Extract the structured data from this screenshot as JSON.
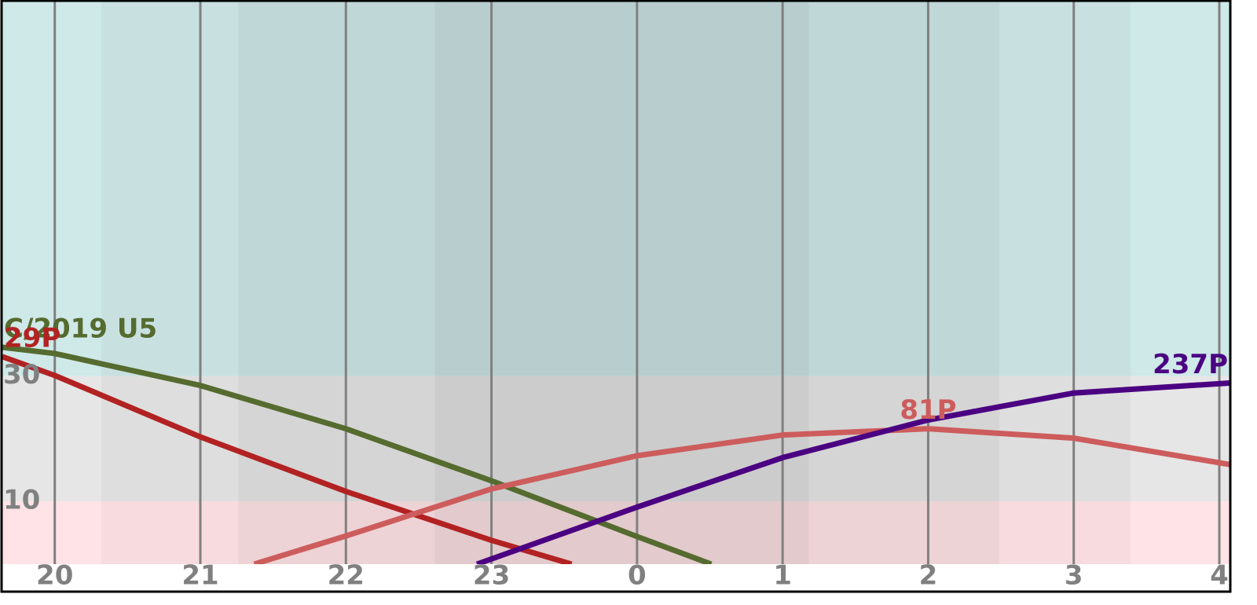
{
  "chart_data": {
    "type": "line",
    "xlim": [
      19.64,
      28.07
    ],
    "xticks": [
      20,
      21,
      22,
      23,
      {
        "value": 24,
        "label": "0"
      },
      {
        "value": 25,
        "label": "1"
      },
      {
        "value": 26,
        "label": "2"
      },
      {
        "value": 27,
        "label": "3"
      },
      {
        "value": 28,
        "label": "4"
      }
    ],
    "ylim": [
      0,
      90
    ],
    "yticks": [
      10,
      30
    ],
    "grid": true,
    "y_zones": [
      {
        "from": 30,
        "to": 90,
        "color": "#cfe8e8"
      },
      {
        "from": 10,
        "to": 30,
        "color": "#e6e6e6"
      },
      {
        "from": 0,
        "to": 10,
        "color": "#ffe3e6"
      }
    ],
    "x_bands": [
      {
        "from": 20.32,
        "to": 21.26,
        "opacity": 0.03
      },
      {
        "from": 21.26,
        "to": 22.61,
        "opacity": 0.07
      },
      {
        "from": 22.61,
        "to": 25.18,
        "opacity": 0.11
      },
      {
        "from": 25.18,
        "to": 26.49,
        "opacity": 0.07
      },
      {
        "from": 26.49,
        "to": 27.39,
        "opacity": 0.03
      }
    ],
    "series": [
      {
        "name": "C/2019 U5",
        "color": "#556b2f",
        "x": [
          19.64,
          20,
          21,
          22,
          23,
          24,
          24.51
        ],
        "values": [
          34.6,
          33.6,
          28.5,
          21.6,
          13.3,
          4.4,
          0
        ]
      },
      {
        "name": "29P",
        "color": "#b22222",
        "x": [
          19.64,
          20,
          21,
          22,
          23,
          23.55
        ],
        "values": [
          33.1,
          30.1,
          20.3,
          11.6,
          3.8,
          0
        ]
      },
      {
        "name": "81P",
        "color": "#cd5c5c",
        "x": [
          21.37,
          22,
          23,
          24,
          25,
          26,
          27,
          28.07
        ],
        "values": [
          0,
          4.5,
          12,
          17.3,
          20.6,
          21.6,
          20.1,
          15.9
        ]
      },
      {
        "name": "237P",
        "color": "#4b0082",
        "x": [
          22.9,
          24,
          25,
          26,
          27,
          28.07
        ],
        "values": [
          0,
          9.1,
          17,
          23,
          27.3,
          28.9
        ]
      }
    ]
  }
}
